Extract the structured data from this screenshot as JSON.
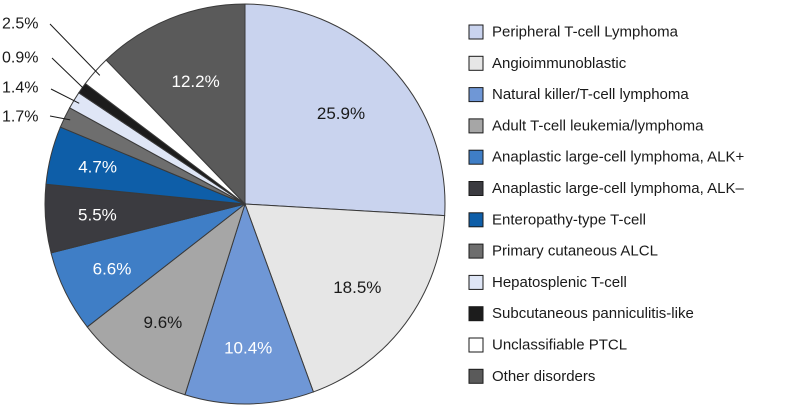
{
  "chart_data": {
    "type": "pie",
    "title": "",
    "categories": [
      "Peripheral T-cell Lymphoma",
      "Angioimmunoblastic",
      "Natural killer/T-cell lymphoma",
      "Adult T-cell leukemia/lymphoma",
      "Anaplastic large-cell lymphoma, ALK+",
      "Anaplastic large-cell lymphoma, ALK–",
      "Enteropathy-type T-cell",
      "Primary cutaneous ALCL",
      "Hepatosplenic T-cell",
      "Subcutaneous panniculitis-like",
      "Unclassifiable PTCL",
      "Other disorders"
    ],
    "values": [
      25.9,
      18.5,
      10.4,
      9.6,
      6.6,
      5.5,
      4.7,
      1.7,
      1.4,
      0.9,
      2.5,
      12.2
    ],
    "labels": [
      "25.9%",
      "18.5%",
      "10.4%",
      "9.6%",
      "6.6%",
      "5.5%",
      "4.7%",
      "1.7%",
      "1.4%",
      "0.9%",
      "2.5%",
      "12.2%"
    ],
    "colors": [
      "#c9d3ee",
      "#e6e6e6",
      "#6f97d6",
      "#a6a6a6",
      "#3f7ec6",
      "#3b3b40",
      "#0e5ea8",
      "#6e6e6e",
      "#dfe6f6",
      "#1c1c1c",
      "#ffffff",
      "#5a5a5a"
    ],
    "label_colors": [
      "#1a1a1a",
      "#1a1a1a",
      "#ffffff",
      "#1a1a1a",
      "#ffffff",
      "#ffffff",
      "#ffffff",
      "#1a1a1a",
      "#1a1a1a",
      "#1a1a1a",
      "#1a1a1a",
      "#ffffff"
    ],
    "external_label_indices": [
      7,
      8,
      9,
      10
    ],
    "legend_position": "right"
  }
}
